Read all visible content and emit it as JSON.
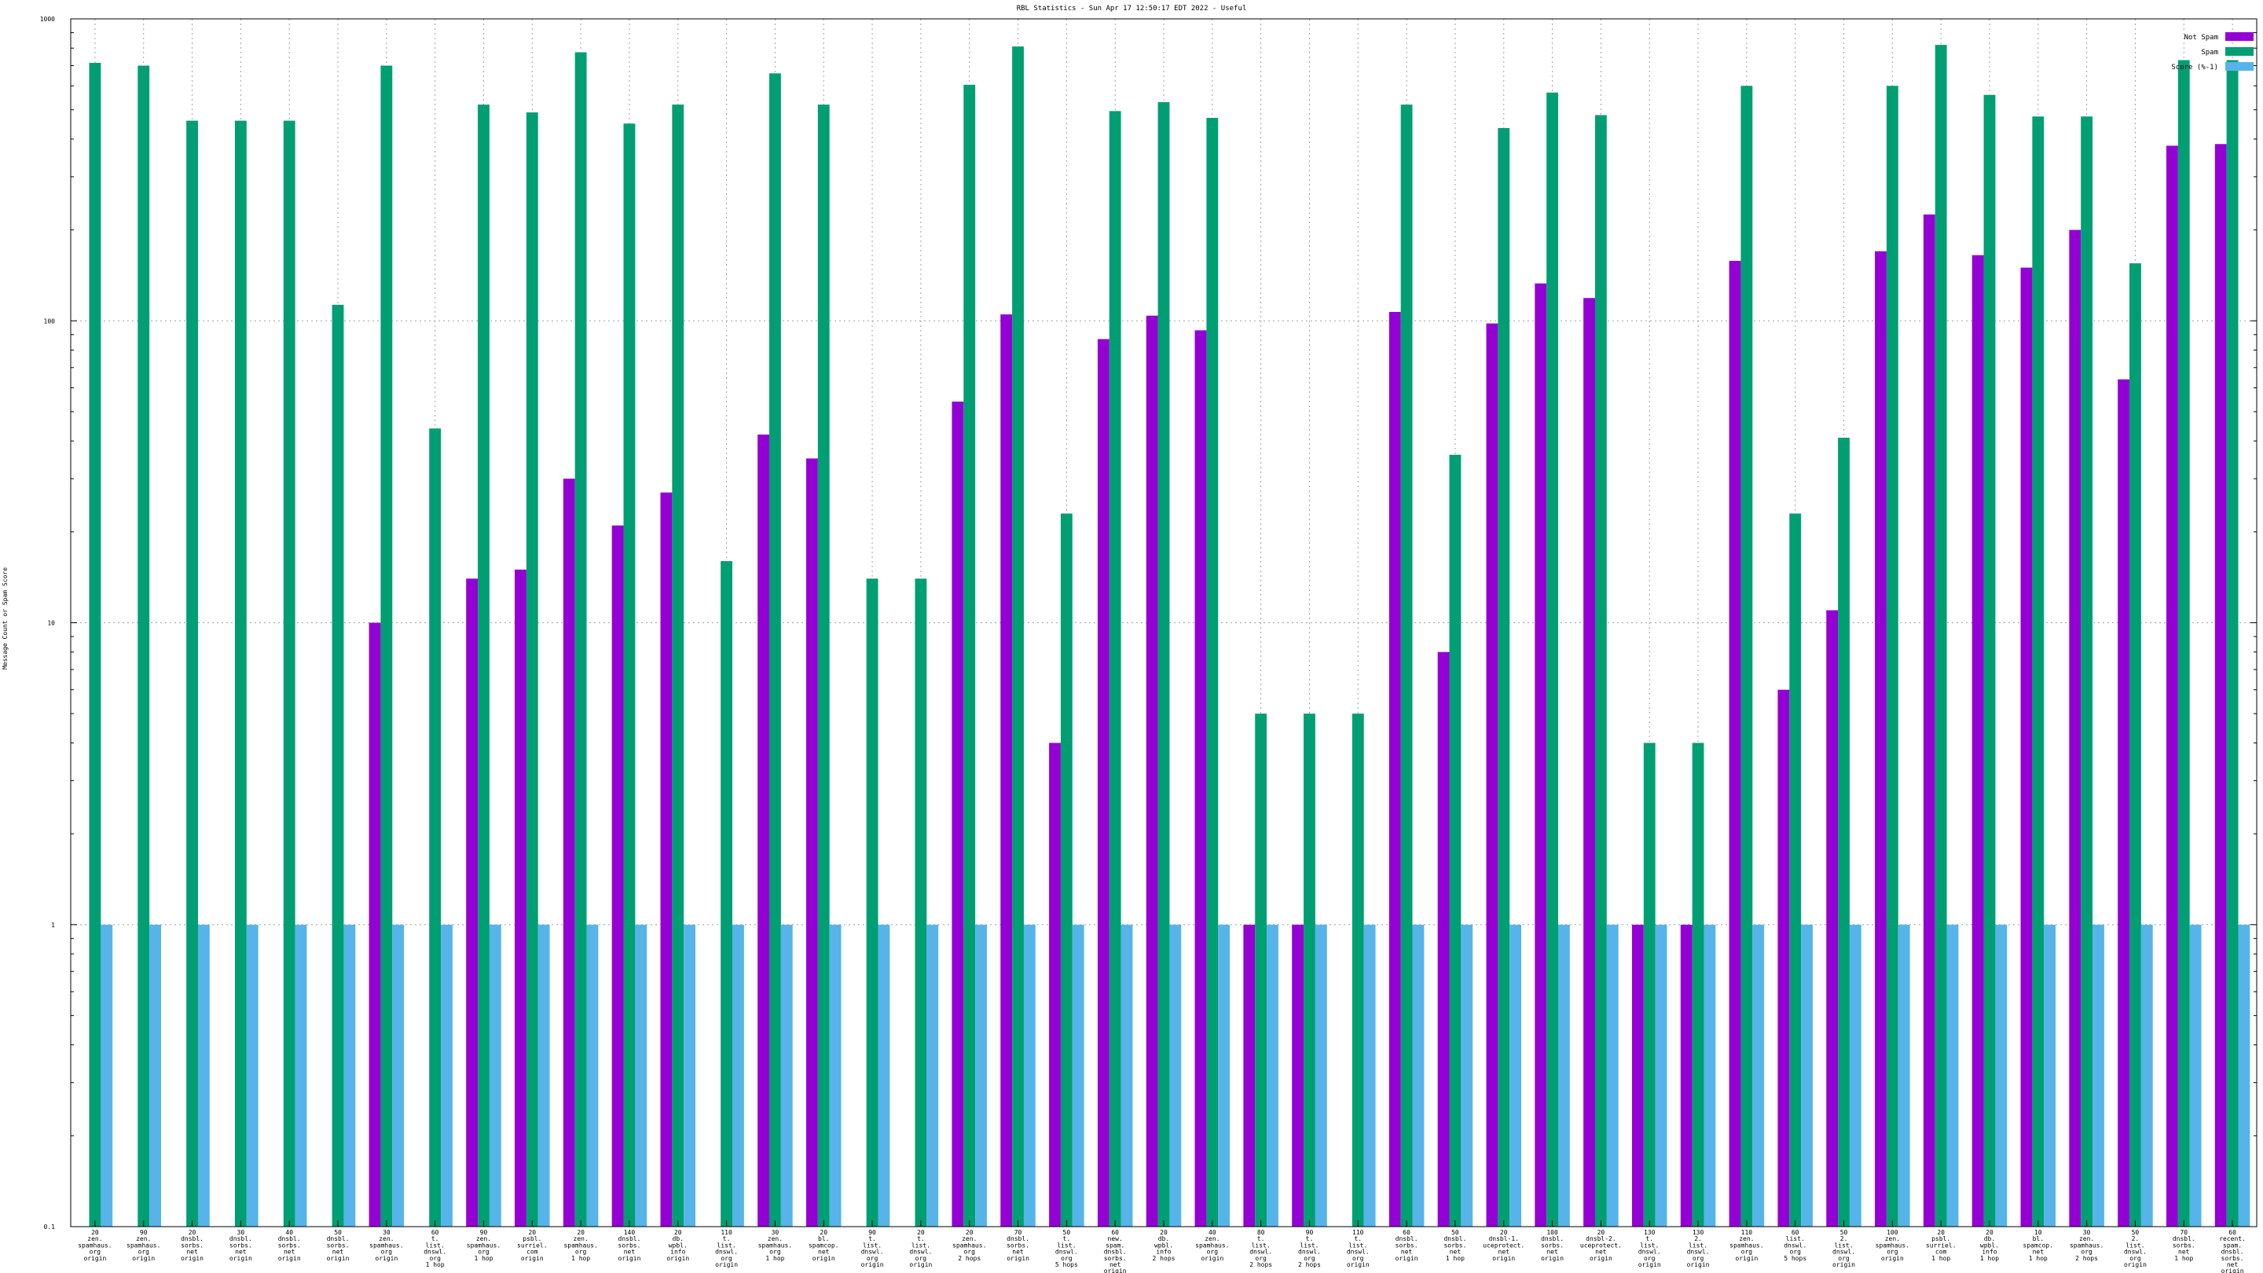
{
  "chart_data": {
    "type": "bar",
    "title": "RBL Statistics - Sun Apr 17 12:50:17 EDT 2022 - Useful",
    "ylabel": "Message Count or Spam Score",
    "xlabel": "",
    "y_scale": "log",
    "ylim": [
      0.1,
      1000
    ],
    "y_ticks": [
      "0.1",
      "1",
      "10",
      "100",
      "1000"
    ],
    "grid": true,
    "legend_position": "top-right",
    "colors": {
      "Not Spam": "#9400d3",
      "Spam": "#009e73",
      "Score (%-1)": "#56b4e9"
    },
    "categories": [
      [
        "20",
        "zen.",
        "spamhaus.",
        "org",
        "origin"
      ],
      [
        "90",
        "zen.",
        "spamhaus.",
        "org",
        "origin"
      ],
      [
        "20",
        "dnsbl.",
        "sorbs.",
        "net",
        "origin"
      ],
      [
        "30",
        "dnsbl.",
        "sorbs.",
        "net",
        "origin"
      ],
      [
        "40",
        "dnsbl.",
        "sorbs.",
        "net",
        "origin"
      ],
      [
        "50",
        "dnsbl.",
        "sorbs.",
        "net",
        "origin"
      ],
      [
        "30",
        "zen.",
        "spamhaus.",
        "org",
        "origin"
      ],
      [
        "60",
        "t.",
        "list.",
        "dnswl.",
        "org",
        "1 hop"
      ],
      [
        "90",
        "zen.",
        "spamhaus.",
        "org",
        "1 hop"
      ],
      [
        "20",
        "psbl.",
        "surriel.",
        "com",
        "origin"
      ],
      [
        "20",
        "zen.",
        "spamhaus.",
        "org",
        "1 hop"
      ],
      [
        "140",
        "dnsbl.",
        "sorbs.",
        "net",
        "origin"
      ],
      [
        "20",
        "db.",
        "wpbl.",
        "info",
        "origin"
      ],
      [
        "110",
        "t.",
        "list.",
        "dnswl.",
        "org",
        "origin"
      ],
      [
        "30",
        "zen.",
        "spamhaus.",
        "org",
        "1 hop"
      ],
      [
        "20",
        "bl.",
        "spamcop.",
        "net",
        "origin"
      ],
      [
        "90",
        "t.",
        "list.",
        "dnswl.",
        "org",
        "origin"
      ],
      [
        "20",
        "t.",
        "list.",
        "dnswl.",
        "org",
        "origin"
      ],
      [
        "20",
        "zen.",
        "spamhaus.",
        "org",
        "2 hops"
      ],
      [
        "70",
        "dnsbl.",
        "sorbs.",
        "net",
        "origin"
      ],
      [
        "50",
        "t.",
        "list.",
        "dnswl.",
        "org",
        "5 hops"
      ],
      [
        "60",
        "new.",
        "spam.",
        "dnsbl.",
        "sorbs.",
        "net",
        "origin"
      ],
      [
        "20",
        "db.",
        "wpbl.",
        "info",
        "2 hops"
      ],
      [
        "40",
        "zen.",
        "spamhaus.",
        "org",
        "origin"
      ],
      [
        "80",
        "t.",
        "list.",
        "dnswl.",
        "org",
        "2 hops"
      ],
      [
        "90",
        "t.",
        "list.",
        "dnswl.",
        "org",
        "2 hops"
      ],
      [
        "110",
        "t.",
        "list.",
        "dnswl.",
        "org",
        "origin"
      ],
      [
        "60",
        "dnsbl.",
        "sorbs.",
        "net",
        "origin"
      ],
      [
        "50",
        "dnsbl.",
        "sorbs.",
        "net",
        "1 hop"
      ],
      [
        "20",
        "dnsbl-1.",
        "uceprotect.",
        "net",
        "origin"
      ],
      [
        "100",
        "dnsbl.",
        "sorbs.",
        "net",
        "origin"
      ],
      [
        "20",
        "dnsbl-2.",
        "uceprotect.",
        "net",
        "origin"
      ],
      [
        "130",
        "t.",
        "list.",
        "dnswl.",
        "org",
        "origin"
      ],
      [
        "130",
        "2.",
        "list.",
        "dnswl.",
        "org",
        "origin"
      ],
      [
        "110",
        "zen.",
        "spamhaus.",
        "org",
        "origin"
      ],
      [
        "60",
        "list.",
        "dnswl.",
        "org",
        "5 hops"
      ],
      [
        "50",
        "2.",
        "list.",
        "dnswl.",
        "org",
        "origin"
      ],
      [
        "100",
        "zen.",
        "spamhaus.",
        "org",
        "origin"
      ],
      [
        "20",
        "psbl.",
        "surriel.",
        "com",
        "1 hop"
      ],
      [
        "20",
        "db.",
        "wpbl.",
        "info",
        "1 hop"
      ],
      [
        "10",
        "bl.",
        "spamcop.",
        "net",
        "1 hop"
      ],
      [
        "30",
        "zen.",
        "spamhaus.",
        "org",
        "2 hops"
      ],
      [
        "50",
        "2.",
        "list.",
        "dnswl.",
        "org",
        "origin"
      ],
      [
        "70",
        "dnsbl.",
        "sorbs.",
        "net",
        "1 hop"
      ],
      [
        "60",
        "recent.",
        "spam.",
        "dnsbl.",
        "sorbs.",
        "net",
        "origin"
      ]
    ],
    "series": [
      {
        "name": "Not Spam",
        "values": [
          0,
          0,
          0,
          0,
          0,
          0,
          10,
          0,
          14,
          15,
          30,
          21,
          27,
          0,
          42,
          35,
          0,
          0,
          54,
          105,
          4,
          87,
          104,
          93,
          1,
          1,
          0,
          107,
          8,
          98,
          133,
          119,
          1,
          1,
          158,
          6,
          11,
          170,
          225,
          165,
          150,
          200,
          64,
          380,
          385
        ]
      },
      {
        "name": "Spam",
        "values": [
          715,
          700,
          460,
          460,
          460,
          113,
          700,
          44,
          520,
          490,
          775,
          450,
          520,
          16,
          660,
          520,
          14,
          14,
          605,
          810,
          23,
          495,
          530,
          470,
          5,
          5,
          5,
          520,
          36,
          435,
          570,
          480,
          4,
          4,
          600,
          23,
          41,
          600,
          820,
          560,
          475,
          475,
          155,
          730,
          730
        ]
      },
      {
        "name": "Score (%-1)",
        "values": [
          1,
          1,
          1,
          1,
          1,
          1,
          1,
          1,
          1,
          1,
          1,
          1,
          1,
          1,
          1,
          1,
          1,
          1,
          1,
          1,
          1,
          1,
          1,
          1,
          1,
          1,
          1,
          1,
          1,
          1,
          1,
          1,
          1,
          1,
          1,
          1,
          1,
          1,
          1,
          1,
          1,
          1,
          1,
          1,
          1
        ]
      }
    ]
  }
}
